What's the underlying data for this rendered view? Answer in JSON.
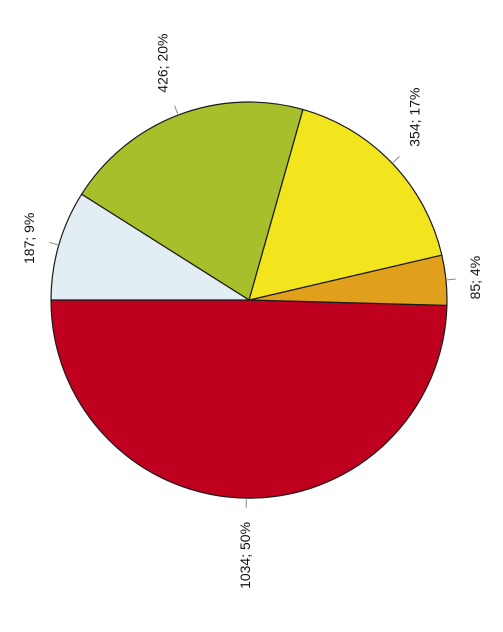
{
  "chart_data": {
    "type": "pie",
    "start_angle_deg": 180,
    "direction": "counterclockwise",
    "label_rotation_deg": -90,
    "slices": [
      {
        "value": 1034,
        "label": "1034; 50%",
        "color": "#c0001f"
      },
      {
        "value": 85,
        "label": "85; 4%",
        "color": "#e0a01c"
      },
      {
        "value": 354,
        "label": "354; 17%",
        "color": "#f2e51e"
      },
      {
        "value": 426,
        "label": "426; 20%",
        "color": "#a6bf2a"
      },
      {
        "value": 187,
        "label": "187; 9%",
        "color": "#e2eef3"
      }
    ]
  }
}
